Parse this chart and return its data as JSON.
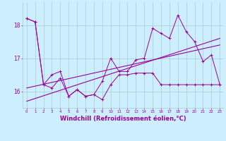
{
  "xlabel": "Windchill (Refroidissement éolien,°C)",
  "x": [
    0,
    1,
    2,
    3,
    4,
    5,
    6,
    7,
    8,
    9,
    10,
    11,
    12,
    13,
    14,
    15,
    16,
    17,
    18,
    19,
    20,
    21,
    22,
    23
  ],
  "line1": [
    18.2,
    18.1,
    16.2,
    16.1,
    16.4,
    15.85,
    16.05,
    15.85,
    15.9,
    15.75,
    16.2,
    16.5,
    16.5,
    16.55,
    16.55,
    16.55,
    16.2,
    16.2,
    16.2,
    16.2,
    16.2,
    16.2,
    16.2,
    16.2
  ],
  "line2": [
    18.2,
    18.1,
    16.2,
    16.5,
    16.6,
    15.85,
    16.05,
    15.85,
    15.9,
    16.3,
    17.0,
    16.6,
    16.6,
    16.95,
    17.0,
    17.9,
    17.75,
    17.6,
    18.3,
    17.8,
    17.5,
    16.9,
    17.1,
    16.2
  ],
  "line3_x": [
    0,
    23
  ],
  "line3": [
    16.1,
    17.4
  ],
  "line4_x": [
    0,
    23
  ],
  "line4": [
    15.7,
    17.6
  ],
  "line_color": "#990099",
  "bg_color": "#cceeff",
  "grid_color": "#aacccc",
  "ylim": [
    15.5,
    18.7
  ],
  "yticks": [
    16,
    17,
    18
  ],
  "xlim": [
    -0.5,
    23.5
  ],
  "ylabel_fontsize": 6,
  "xlabel_fontsize": 6
}
